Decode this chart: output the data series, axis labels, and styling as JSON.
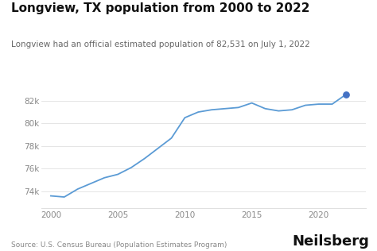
{
  "title": "Longview, TX population from 2000 to 2022",
  "subtitle": "Longview had an official estimated population of 82,531 on July 1, 2022",
  "source": "Source: U.S. Census Bureau (Population Estimates Program)",
  "brand": "Neilsberg",
  "years": [
    2000,
    2001,
    2002,
    2003,
    2004,
    2005,
    2006,
    2007,
    2008,
    2009,
    2010,
    2011,
    2012,
    2013,
    2014,
    2015,
    2016,
    2017,
    2018,
    2019,
    2020,
    2021,
    2022
  ],
  "population": [
    73600,
    73500,
    74200,
    74700,
    75200,
    75500,
    76100,
    76900,
    77800,
    78700,
    80500,
    81000,
    81200,
    81300,
    81400,
    81800,
    81300,
    81100,
    81200,
    81600,
    81700,
    81700,
    82531
  ],
  "line_color": "#5b9bd5",
  "dot_color": "#4472c4",
  "background_color": "#ffffff",
  "title_fontsize": 11,
  "subtitle_fontsize": 7.5,
  "axis_label_fontsize": 7.5,
  "source_fontsize": 6.5,
  "brand_fontsize": 13,
  "ylim": [
    72500,
    83800
  ],
  "yticks": [
    74000,
    76000,
    78000,
    80000,
    82000
  ],
  "xticks": [
    2000,
    2005,
    2010,
    2015,
    2020
  ],
  "xlim": [
    1999.3,
    2023.5
  ],
  "grid_color": "#e0e0e0",
  "title_color": "#111111",
  "subtitle_color": "#666666",
  "tick_color": "#888888",
  "source_color": "#888888",
  "brand_color": "#111111"
}
